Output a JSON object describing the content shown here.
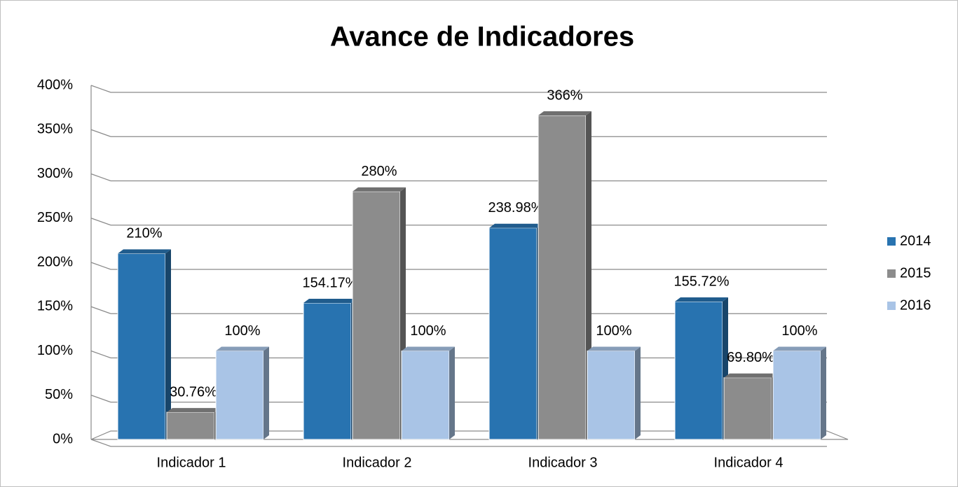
{
  "chart_data": {
    "type": "bar",
    "title": "Avance de Indicadores",
    "categories": [
      "Indicador 1",
      "Indicador 2",
      "Indicador 3",
      "Indicador 4"
    ],
    "series": [
      {
        "name": "2014",
        "color": "#2873b0",
        "values": [
          210,
          154.17,
          238.98,
          155.72
        ],
        "value_labels": [
          "210%",
          "154.17%",
          "238.98%",
          "155.72%"
        ]
      },
      {
        "name": "2015",
        "color": "#8c8c8c",
        "values": [
          30.76,
          280,
          366,
          69.8
        ],
        "value_labels": [
          "30.76%",
          "280%",
          "366%",
          "69.80%"
        ]
      },
      {
        "name": "2016",
        "color": "#a9c4e6",
        "values": [
          100,
          100,
          100,
          100
        ],
        "value_labels": [
          "100%",
          "100%",
          "100%",
          "100%"
        ]
      }
    ],
    "ylim": [
      0,
      400
    ],
    "yticks": [
      {
        "value": 0,
        "label": "0%"
      },
      {
        "value": 50,
        "label": "50%"
      },
      {
        "value": 100,
        "label": "100%"
      },
      {
        "value": 150,
        "label": "150%"
      },
      {
        "value": 200,
        "label": "200%"
      },
      {
        "value": 250,
        "label": "250%"
      },
      {
        "value": 300,
        "label": "300%"
      },
      {
        "value": 350,
        "label": "350%"
      },
      {
        "value": 400,
        "label": "400%"
      }
    ],
    "grid": true,
    "legend": "right"
  }
}
